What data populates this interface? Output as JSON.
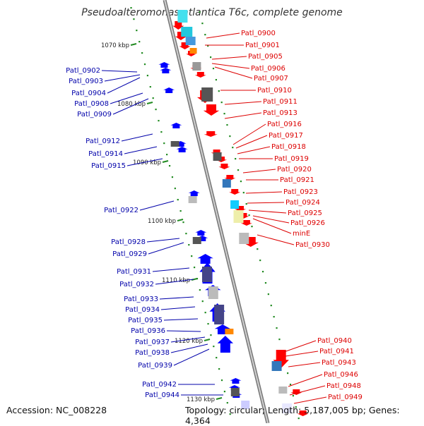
{
  "title": "Pseudoalteromonas atlantica T6c, complete genome",
  "footer": {
    "accession": "Accession: NC_008228",
    "summary": "Topology: circular; Length: 5,187,005 bp; Genes: 4,364"
  },
  "kbp_ticks": [
    "1070 kbp",
    "1080 kbp",
    "1090 kbp",
    "1100 kbp",
    "1110 kbp",
    "1120 kbp",
    "1130 kbp"
  ],
  "labels_right": [
    "Patl_0900",
    "Patl_0901",
    "Patl_0905",
    "Patl_0906",
    "Patl_0907",
    "Patl_0910",
    "Patl_0911",
    "Patl_0913",
    "Patl_0916",
    "Patl_0917",
    "Patl_0918",
    "Patl_0919",
    "Patl_0920",
    "Patl_0921",
    "Patl_0923",
    "Patl_0924",
    "Patl_0925",
    "Patl_0926",
    "minE",
    "Patl_0930",
    "Patl_0940",
    "Patl_0941",
    "Patl_0943",
    "Patl_0946",
    "Patl_0948",
    "Patl_0949"
  ],
  "labels_left": [
    "Patl_0902",
    "Patl_0903",
    "Patl_0904",
    "Patl_0908",
    "Patl_0909",
    "Patl_0912",
    "Patl_0914",
    "Patl_0915",
    "Patl_0922",
    "Patl_0928",
    "Patl_0929",
    "Patl_0931",
    "Patl_0932",
    "Patl_0933",
    "Patl_0934",
    "Patl_0935",
    "Patl_0936",
    "Patl_0937",
    "Patl_0938",
    "Patl_0939",
    "Patl_0942",
    "Patl_0944"
  ],
  "colors": {
    "forward": "#ff0000",
    "reverse": "#0000ff",
    "backbone": "#999999",
    "ticks": "#228b22"
  }
}
